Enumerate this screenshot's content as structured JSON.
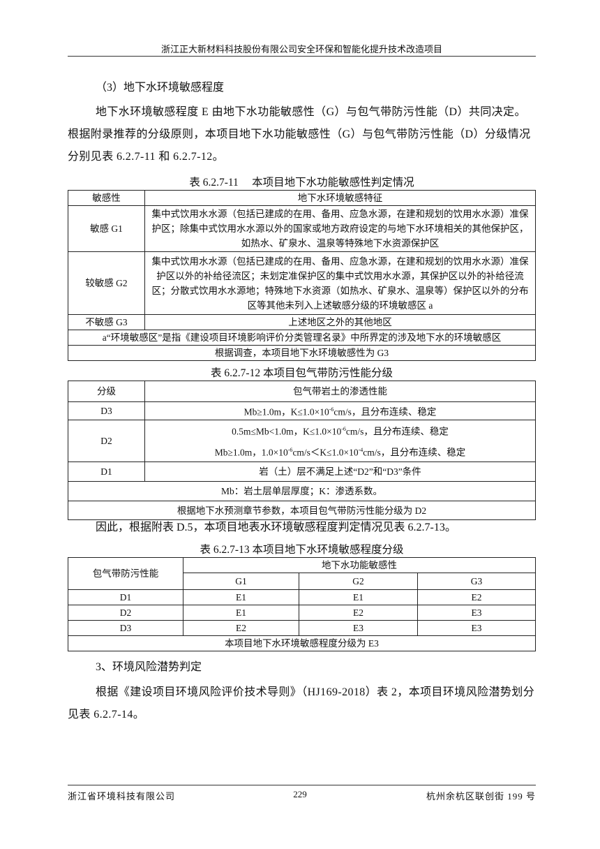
{
  "header": {
    "title": "浙江正大新材料科技股份有限公司安全环保和智能化提升技术改造项目"
  },
  "section": {
    "heading": "（3）地下水环境敏感程度",
    "para1": "地下水环境敏感程度 E 由地下水功能敏感性（G）与包气带防污性能（D）共同决定。根据附录推荐的分级原则，本项目地下水功能敏感性（G）与包气带防污性能（D）分级情况分别见表 6.2.7-11 和 6.2.7-12。"
  },
  "table11": {
    "caption": "表 6.2.7-11　 本项目地下水功能敏感性判定情况",
    "headers": [
      "敏感性",
      "地下水环境敏感特征"
    ],
    "rows": [
      {
        "level": "敏感 G1",
        "desc": "集中式饮用水水源（包括已建成的在用、备用、应急水源，在建和规划的饮用水水源）准保护区；除集中式饮用水水源以外的国家或地方政府设定的与地下水环境相关的其他保护区，如热水、矿泉水、温泉等特殊地下水资源保护区"
      },
      {
        "level": "较敏感 G2",
        "desc": "集中式饮用水水源（包括已建成的在用、备用、应急水源，在建和规划的饮用水水源）准保护区以外的补给径流区；未划定准保护区的集中式饮用水水源，其保护区以外的补给径流区；分散式饮用水水源地；特殊地下水资源（如热水、矿泉水、温泉等）保护区以外的分布区等其他未列入上述敏感分级的环境敏感区 a"
      },
      {
        "level": "不敏感 G3",
        "desc": "上述地区之外的其他地区"
      }
    ],
    "note": "a“环境敏感区”是指《建设项目环境影响评价分类管理名录》中所界定的涉及地下水的环境敏感区",
    "conclusion": "根据调查，本项目地下水环境敏感性为 G3"
  },
  "table12": {
    "caption": "表 6.2.7-12 本项目包气带防污性能分级",
    "headers": [
      "分级",
      "包气带岩土的渗透性能"
    ],
    "d3": {
      "level": "D3",
      "a": "Mb≥1.0m，K≤1.0×10",
      "exp": "-6",
      "b": "cm/s，且分布连续、稳定"
    },
    "d2": {
      "level": "D2",
      "l1a": "0.5m≤Mb<1.0m，K≤1.0×10",
      "l1exp": "-6",
      "l1b": "cm/s，且分布连续、稳定",
      "l2a": "Mb≥1.0m，1.0×10",
      "l2exp1": "-6",
      "l2b": "cm/s＜K≤1.0×10",
      "l2exp2": "-4",
      "l2c": "cm/s，且分布连续、稳定"
    },
    "d1": {
      "level": "D1",
      "desc": "岩（土）层不满足上述“D2”和“D3”条件"
    },
    "note": "Mb：岩土层单层厚度；K：渗透系数。",
    "conclusion": "根据地下水预测章节参数，本项目包气带防污性能分级为 D2"
  },
  "para2": "因此，根据附表 D.5，本项目地表水环境敏感程度判定情况见表 6.2.7-13。",
  "table13": {
    "caption": "表 6.2.7-13 本项目地下水环境敏感程度分级",
    "rowHeader": "包气带防污性能",
    "groupHeader": "地下水功能敏感性",
    "cols": [
      "G1",
      "G2",
      "G3"
    ],
    "rows": [
      {
        "d": "D1",
        "v": [
          "E1",
          "E1",
          "E2"
        ]
      },
      {
        "d": "D2",
        "v": [
          "E1",
          "E2",
          "E3"
        ]
      },
      {
        "d": "D3",
        "v": [
          "E2",
          "E3",
          "E3"
        ]
      }
    ],
    "conclusion": "本项目地下水环境敏感程度分级为 E3"
  },
  "section3": {
    "heading": "3、环境风险潜势判定",
    "para": "根据《建设项目环境风险评价技术导则》（HJ169-2018）表 2，本项目环境风险潜势划分见表 6.2.7-14。"
  },
  "footer": {
    "company": "浙江省环境科技有限公司",
    "page": "229",
    "address": "杭州余杭区联创街 199 号"
  }
}
